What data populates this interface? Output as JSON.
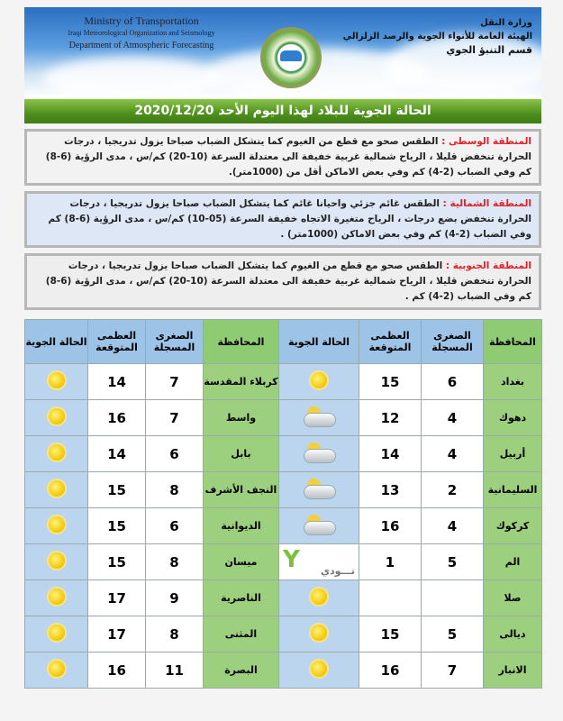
{
  "header": {
    "en_lines": [
      "Ministry of Transportation",
      "Iraqi Meteorological Organization and Seismology",
      "Department of Atmospheric Forecasting"
    ],
    "ar_lines": [
      "وزارة النقل",
      "الهيئة العامة للأنواء الجوية والرصد الزلزالي",
      "قسم التنبؤ الجوي"
    ],
    "title": "الحالة الجوية للبلاد لهذا اليوم الأحد 2020/12/20"
  },
  "regions": [
    {
      "name": "المنطقة الوسطى :",
      "text": " الطقس صحو مع قطع من الغيوم كما يتشكل الضباب صباحا يزول تدريجيا ، درجات الحرارة تنخفض قليلا ، الرياح شمالية غربية خفيفة الى معتدلة السرعة (10-20) كم/س ، مدى الرؤية (6-8) كم وفي الضباب (2-4) كم وفي بعض الاماكن أقل من (1000متر).",
      "color": "#f2f2f2"
    },
    {
      "name": "المنطقة الشمالية :",
      "text": " الطقس غائم جزئي واحيانا غائم كما يتشكل الضباب صباحا يزول تدريجيا ، درجات الحرارة تنخفض بضع درجات ، الرياح متغيرة الاتجاه خفيفة السرعة (05-10) كم/س ، مدى الرؤية (6-8) كم وفي الضباب (2-4) كم وفي بعض الاماكن (1000متر) .",
      "color": "#dde7f5"
    },
    {
      "name": "المنطقة الجنوبية :",
      "text": " الطقس صحو مع قطع من الغيوم كما يتشكل الضباب صباحا يزول تدريجيا ، درجات الحرارة تنخفض قليلا ، الرياح شمالية غربية خفيفة الى معتدلة السرعة (10-20) كم/س ، مدى الرؤية (6-8) كم وفي الضباب (2-4) كم .",
      "color": "#eeeeee"
    }
  ],
  "table": {
    "headers": {
      "province": "المحافظة",
      "min": "الصغرى المسجلة",
      "max": "العظمى المتوقعة",
      "weather": "الحالة الجوية"
    },
    "rows": [
      [
        {
          "p": "بغداد",
          "min": "6",
          "max": "15",
          "w": "sunny"
        },
        {
          "p": "كربلاء المقدسة",
          "min": "7",
          "max": "14",
          "w": "sunny"
        }
      ],
      [
        {
          "p": "دهوك",
          "min": "4",
          "max": "12",
          "w": "partly-cloudy"
        },
        {
          "p": "واسط",
          "min": "7",
          "max": "16",
          "w": "sunny"
        }
      ],
      [
        {
          "p": "أربيل",
          "min": "4",
          "max": "14",
          "w": "partly-cloudy"
        },
        {
          "p": "بابل",
          "min": "6",
          "max": "14",
          "w": "sunny"
        }
      ],
      [
        {
          "p": "السليمانية",
          "min": "2",
          "max": "13",
          "w": "partly-cloudy"
        },
        {
          "p": "النجف الأشرف",
          "min": "8",
          "max": "15",
          "w": "sunny"
        }
      ],
      [
        {
          "p": "كركوك",
          "min": "4",
          "max": "16",
          "w": "partly-cloudy"
        },
        {
          "p": "الديوانية",
          "min": "6",
          "max": "15",
          "w": "sunny"
        }
      ],
      [
        {
          "p": "الم",
          "min": "5",
          "max": "1",
          "w": "partly-cloudy"
        },
        {
          "p": "ميسان",
          "min": "8",
          "max": "15",
          "w": "sunny"
        }
      ],
      [
        {
          "p": "صلا",
          "min": "",
          "max": "",
          "w": "sunny"
        },
        {
          "p": "الناصرية",
          "min": "9",
          "max": "17",
          "w": "sunny"
        }
      ],
      [
        {
          "p": "ديالى",
          "min": "5",
          "max": "15",
          "w": "sunny"
        },
        {
          "p": "المثنى",
          "min": "8",
          "max": "17",
          "w": "sunny"
        }
      ],
      [
        {
          "p": "الانبار",
          "min": "7",
          "max": "16",
          "w": "sunny"
        },
        {
          "p": "البصرة",
          "min": "11",
          "max": "16",
          "w": "sunny"
        }
      ]
    ]
  },
  "watermark": {
    "text": "تـــودي"
  }
}
